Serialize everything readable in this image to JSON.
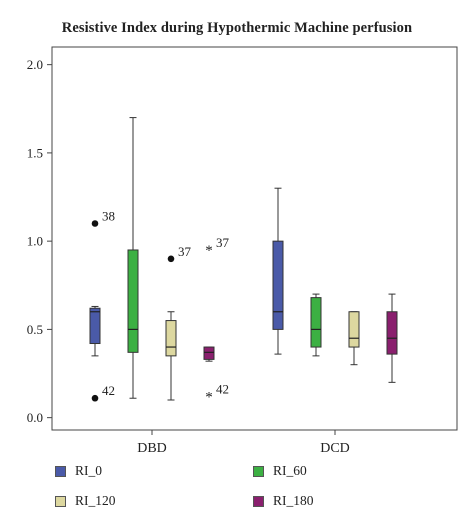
{
  "chart_data": {
    "type": "boxplot",
    "title": "Resistive Index during Hypothermic Machine perfusion",
    "ylim": [
      -0.07,
      2.1
    ],
    "yticks": [
      0.0,
      0.5,
      1.0,
      1.5,
      2.0
    ],
    "ytick_labels": [
      "0.0",
      "0.5",
      "1.0",
      "1.5",
      "2.0"
    ],
    "categories": [
      "DBD",
      "DCD"
    ],
    "legend": {
      "placement": "bottom",
      "columns": 2
    },
    "series": [
      {
        "name": "RI_0",
        "color": "#4a5aa8",
        "boxes": [
          {
            "category": "DBD",
            "whisker_low": 0.35,
            "q1": 0.42,
            "median": 0.6,
            "q3": 0.62,
            "whisker_high": 0.63,
            "outliers": [
              {
                "value": 1.1,
                "label": "38",
                "marker": "dot"
              },
              {
                "value": 0.11,
                "label": "42",
                "marker": "dot"
              }
            ]
          },
          {
            "category": "DCD",
            "whisker_low": 0.36,
            "q1": 0.5,
            "median": 0.6,
            "q3": 1.0,
            "whisker_high": 1.3,
            "outliers": []
          }
        ]
      },
      {
        "name": "RI_60",
        "color": "#3cb043",
        "boxes": [
          {
            "category": "DBD",
            "whisker_low": 0.11,
            "q1": 0.37,
            "median": 0.5,
            "q3": 0.95,
            "whisker_high": 1.7,
            "outliers": []
          },
          {
            "category": "DCD",
            "whisker_low": 0.35,
            "q1": 0.4,
            "median": 0.5,
            "q3": 0.68,
            "whisker_high": 0.7,
            "outliers": []
          }
        ]
      },
      {
        "name": "RI_120",
        "color": "#ddd8a0",
        "boxes": [
          {
            "category": "DBD",
            "whisker_low": 0.1,
            "q1": 0.35,
            "median": 0.4,
            "q3": 0.55,
            "whisker_high": 0.6,
            "outliers": [
              {
                "value": 0.9,
                "label": "37",
                "marker": "dot"
              }
            ]
          },
          {
            "category": "DCD",
            "whisker_low": 0.3,
            "q1": 0.4,
            "median": 0.45,
            "q3": 0.6,
            "whisker_high": 0.6,
            "outliers": []
          }
        ]
      },
      {
        "name": "RI_180",
        "color": "#8a1f6e",
        "boxes": [
          {
            "category": "DBD",
            "whisker_low": 0.32,
            "q1": 0.33,
            "median": 0.37,
            "q3": 0.4,
            "whisker_high": 0.4,
            "outliers": [
              {
                "value": 0.95,
                "label": "37",
                "marker": "star"
              },
              {
                "value": 0.12,
                "label": "42",
                "marker": "star"
              }
            ]
          },
          {
            "category": "DCD",
            "whisker_low": 0.2,
            "q1": 0.36,
            "median": 0.45,
            "q3": 0.6,
            "whisker_high": 0.7,
            "outliers": []
          }
        ]
      }
    ]
  }
}
